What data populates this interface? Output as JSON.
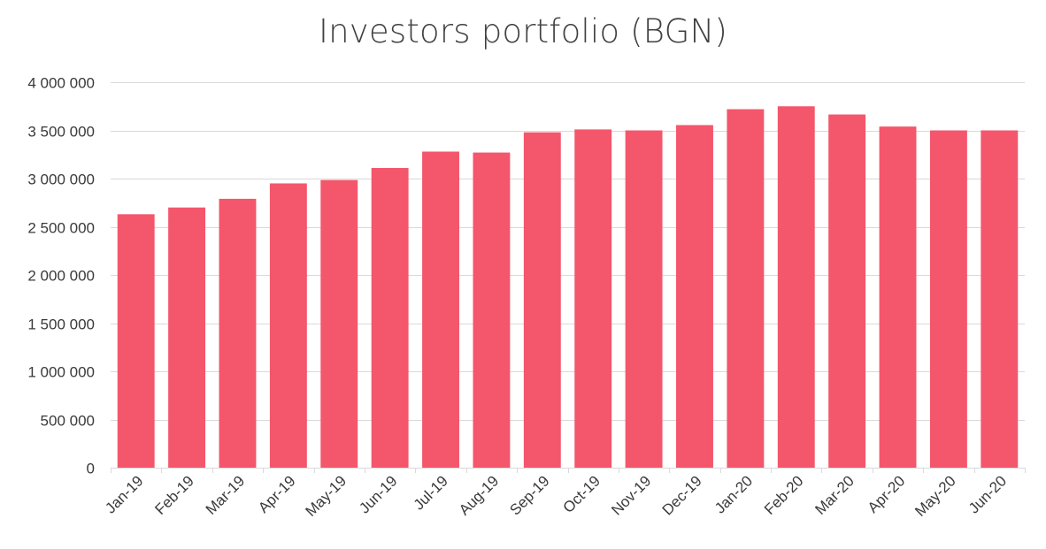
{
  "chart_data": {
    "type": "bar",
    "title": "Investors portfolio (BGN)",
    "xlabel": "",
    "ylabel": "",
    "categories": [
      "Jan-19",
      "Feb-19",
      "Mar-19",
      "Apr-19",
      "May-19",
      "Jun-19",
      "Jul-19",
      "Aug-19",
      "Sep-19",
      "Oct-19",
      "Nov-19",
      "Dec-19",
      "Jan-20",
      "Feb-20",
      "Mar-20",
      "Apr-20",
      "May-20",
      "Jun-20"
    ],
    "values": [
      2630000,
      2700000,
      2790000,
      2950000,
      2985000,
      3110000,
      3280000,
      3270000,
      3480000,
      3510000,
      3500000,
      3555000,
      3720000,
      3750000,
      3665000,
      3540000,
      3500000,
      3500000
    ],
    "ylim": [
      0,
      4000000
    ],
    "yticks": [
      0,
      500000,
      1000000,
      1500000,
      2000000,
      2500000,
      3000000,
      3500000,
      4000000
    ],
    "ytick_labels": [
      "0",
      "500 000",
      "1 000 000",
      "1 500 000",
      "2 000 000",
      "2 500 000",
      "3 000 000",
      "3 500 000",
      "4 000 000"
    ],
    "grid": true,
    "legend": "none",
    "bar_color": "#f4566b",
    "grid_color": "#d9d9d9"
  }
}
